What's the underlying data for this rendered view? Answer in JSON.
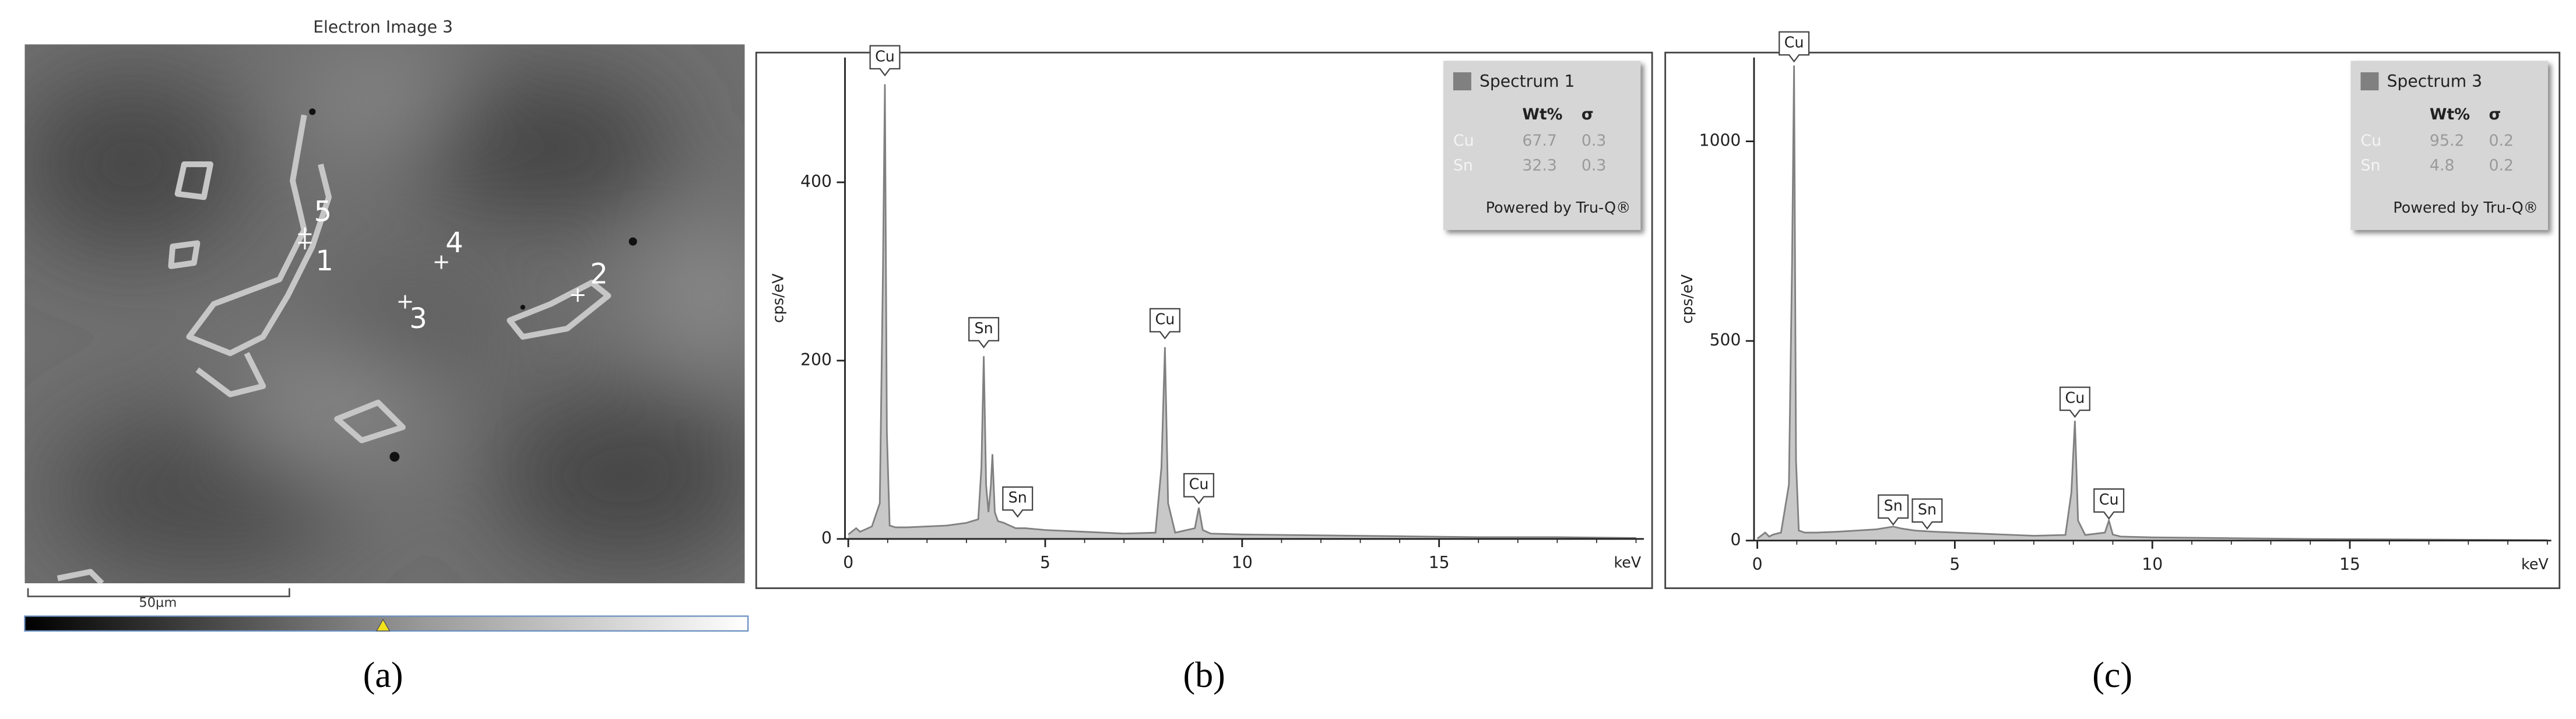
{
  "image": {
    "title": "Electron Image 3",
    "points": [
      "1",
      "2",
      "3",
      "4",
      "5"
    ],
    "scale_bar": "50µm",
    "caption": "(a)"
  },
  "chart_data": [
    {
      "type": "area",
      "caption": "(b)",
      "x_label": "keV",
      "y_label": "cps/eV",
      "xlim": [
        0,
        20.2
      ],
      "ylim": [
        0,
        540
      ],
      "xticks": [
        0,
        5,
        10,
        15
      ],
      "yticks": [
        0,
        200,
        400
      ],
      "series": [
        {
          "name": "Spectrum 1",
          "color": "#808080",
          "x": [
            0,
            0.2,
            0.3,
            0.4,
            0.6,
            0.8,
            0.88,
            0.93,
            0.98,
            1.05,
            1.2,
            1.5,
            2.0,
            2.5,
            3.0,
            3.3,
            3.38,
            3.44,
            3.5,
            3.56,
            3.62,
            3.66,
            3.72,
            3.8,
            3.95,
            4.1,
            4.25,
            4.5,
            5,
            6,
            7,
            7.8,
            7.95,
            8.04,
            8.12,
            8.3,
            8.8,
            8.9,
            9.0,
            9.2,
            10,
            12,
            14,
            16,
            18,
            20
          ],
          "values": [
            5,
            12,
            8,
            10,
            14,
            40,
            300,
            510,
            120,
            15,
            13,
            13,
            14,
            15,
            18,
            22,
            80,
            205,
            60,
            30,
            60,
            95,
            30,
            20,
            18,
            15,
            12,
            12,
            10,
            8,
            6,
            7,
            80,
            215,
            40,
            7,
            12,
            35,
            10,
            6,
            5,
            4,
            3,
            2,
            2,
            1
          ]
        }
      ],
      "annotations": [
        {
          "text": "Cu",
          "x": 0.93,
          "y": 520
        },
        {
          "text": "Sn",
          "x": 3.44,
          "y": 215
        },
        {
          "text": "Sn",
          "x": 4.3,
          "y": 25
        },
        {
          "text": "Cu",
          "x": 8.04,
          "y": 225
        },
        {
          "text": "Cu",
          "x": 8.9,
          "y": 40
        }
      ],
      "legend_table": {
        "columns": [
          "Wt%",
          "σ"
        ],
        "rows": [
          [
            "Cu",
            67.7,
            0.3
          ],
          [
            "Sn",
            32.3,
            0.3
          ]
        ],
        "footer": "Powered by Tru-Q®"
      }
    },
    {
      "type": "area",
      "caption": "(c)",
      "x_label": "keV",
      "y_label": "cps/eV",
      "xlim": [
        0,
        20.1
      ],
      "ylim": [
        0,
        1210
      ],
      "xticks": [
        0,
        5,
        10,
        15
      ],
      "yticks": [
        0,
        500,
        1000
      ],
      "series": [
        {
          "name": "Spectrum 3",
          "color": "#808080",
          "x": [
            0,
            0.2,
            0.3,
            0.4,
            0.6,
            0.8,
            0.88,
            0.93,
            0.98,
            1.05,
            1.2,
            1.5,
            2,
            2.5,
            3,
            3.44,
            3.66,
            4,
            4.5,
            5,
            6,
            7,
            7.8,
            7.95,
            8.04,
            8.12,
            8.3,
            8.8,
            8.9,
            9.0,
            9.2,
            10,
            12,
            14,
            16,
            18,
            20
          ],
          "values": [
            5,
            20,
            10,
            15,
            20,
            140,
            700,
            1190,
            200,
            25,
            20,
            20,
            22,
            25,
            28,
            35,
            30,
            25,
            22,
            20,
            16,
            12,
            14,
            120,
            300,
            50,
            14,
            20,
            50,
            15,
            10,
            8,
            6,
            4,
            3,
            2,
            1
          ]
        }
      ],
      "annotations": [
        {
          "text": "Cu",
          "x": 0.93,
          "y": 1200
        },
        {
          "text": "Sn",
          "x": 3.44,
          "y": 40
        },
        {
          "text": "Sn",
          "x": 4.3,
          "y": 30
        },
        {
          "text": "Cu",
          "x": 8.04,
          "y": 310
        },
        {
          "text": "Cu",
          "x": 8.9,
          "y": 55
        }
      ],
      "legend_table": {
        "columns": [
          "Wt%",
          "σ"
        ],
        "rows": [
          [
            "Cu",
            95.2,
            0.2
          ],
          [
            "Sn",
            4.8,
            0.2
          ]
        ],
        "footer": "Powered by Tru-Q®"
      }
    }
  ]
}
